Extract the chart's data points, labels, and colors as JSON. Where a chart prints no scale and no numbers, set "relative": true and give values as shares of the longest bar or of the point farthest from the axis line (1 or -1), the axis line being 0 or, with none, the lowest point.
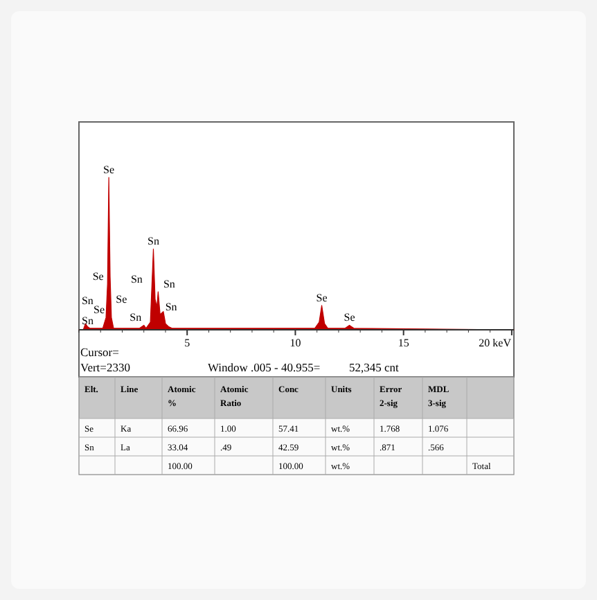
{
  "chart_data": [
    {
      "type": "area",
      "relative": true,
      "color": "#c00000",
      "x": [
        0,
        0.2,
        0.3,
        0.4,
        0.5,
        1.1,
        1.25,
        1.32,
        1.38,
        1.44,
        1.5,
        1.6,
        2.8,
        3.0,
        3.1,
        3.3,
        3.44,
        3.52,
        3.6,
        3.66,
        3.75,
        3.9,
        4.0,
        4.15,
        4.3,
        10.9,
        11.1,
        11.22,
        11.35,
        11.5,
        12.3,
        12.5,
        12.7,
        20.1
      ],
      "values": [
        0,
        0,
        0.04,
        0.02,
        0.01,
        0.01,
        0.08,
        0.3,
        1.0,
        0.35,
        0.08,
        0.01,
        0.01,
        0.03,
        0.01,
        0.05,
        0.53,
        0.2,
        0.15,
        0.25,
        0.1,
        0.12,
        0.04,
        0.02,
        0.01,
        0.01,
        0.05,
        0.16,
        0.04,
        0.01,
        0.01,
        0.03,
        0.01,
        0
      ],
      "xlim": [
        0,
        20.1
      ],
      "xticks": [
        5,
        10,
        15,
        {
          "value": 20,
          "label": "20 keV"
        }
      ],
      "annotations": [
        {
          "text": "Se",
          "x": 1.38,
          "y": 1.0
        },
        {
          "text": "Se",
          "x": 1.4,
          "y": 0.3
        },
        {
          "text": "Se",
          "x": 1.45,
          "y": 0.15
        },
        {
          "text": "Se",
          "x": 1.25,
          "y": 0.08
        },
        {
          "text": "Sn",
          "x": 0.3,
          "y": 0.04
        },
        {
          "text": "Sn",
          "x": 0.4,
          "y": 0.02
        },
        {
          "text": "Sn",
          "x": 3.44,
          "y": 0.53
        },
        {
          "text": "Sn",
          "x": 3.5,
          "y": 0.28
        },
        {
          "text": "Sn",
          "x": 3.66,
          "y": 0.25
        },
        {
          "text": "Sn",
          "x": 3.75,
          "y": 0.1
        },
        {
          "text": "Sn",
          "x": 3.0,
          "y": 0.03
        },
        {
          "text": "Se",
          "x": 11.22,
          "y": 0.16
        },
        {
          "text": "Se",
          "x": 12.5,
          "y": 0.03
        },
        "Cursor=",
        "Vert=2330",
        "Window .005 - 40.955=",
        "52,345 cnt"
      ]
    },
    {
      "type": "other",
      "categories": [
        "Elt.",
        "Line",
        "Atomic %",
        "Atomic Ratio",
        "Conc",
        "Units",
        "Error 2-sig",
        "MDL 3-sig",
        null
      ],
      "cell_labels": [
        [
          "Se",
          "Ka",
          "66.96",
          "1.00",
          "57.41",
          "wt.%",
          "1.768",
          "1.076",
          null
        ],
        [
          "Sn",
          "La",
          "33.04",
          ".49",
          "42.59",
          "wt.%",
          ".871",
          ".566",
          null
        ],
        [
          null,
          null,
          "100.00",
          null,
          "100.00",
          "wt.%",
          null,
          null,
          "Total"
        ]
      ]
    }
  ]
}
